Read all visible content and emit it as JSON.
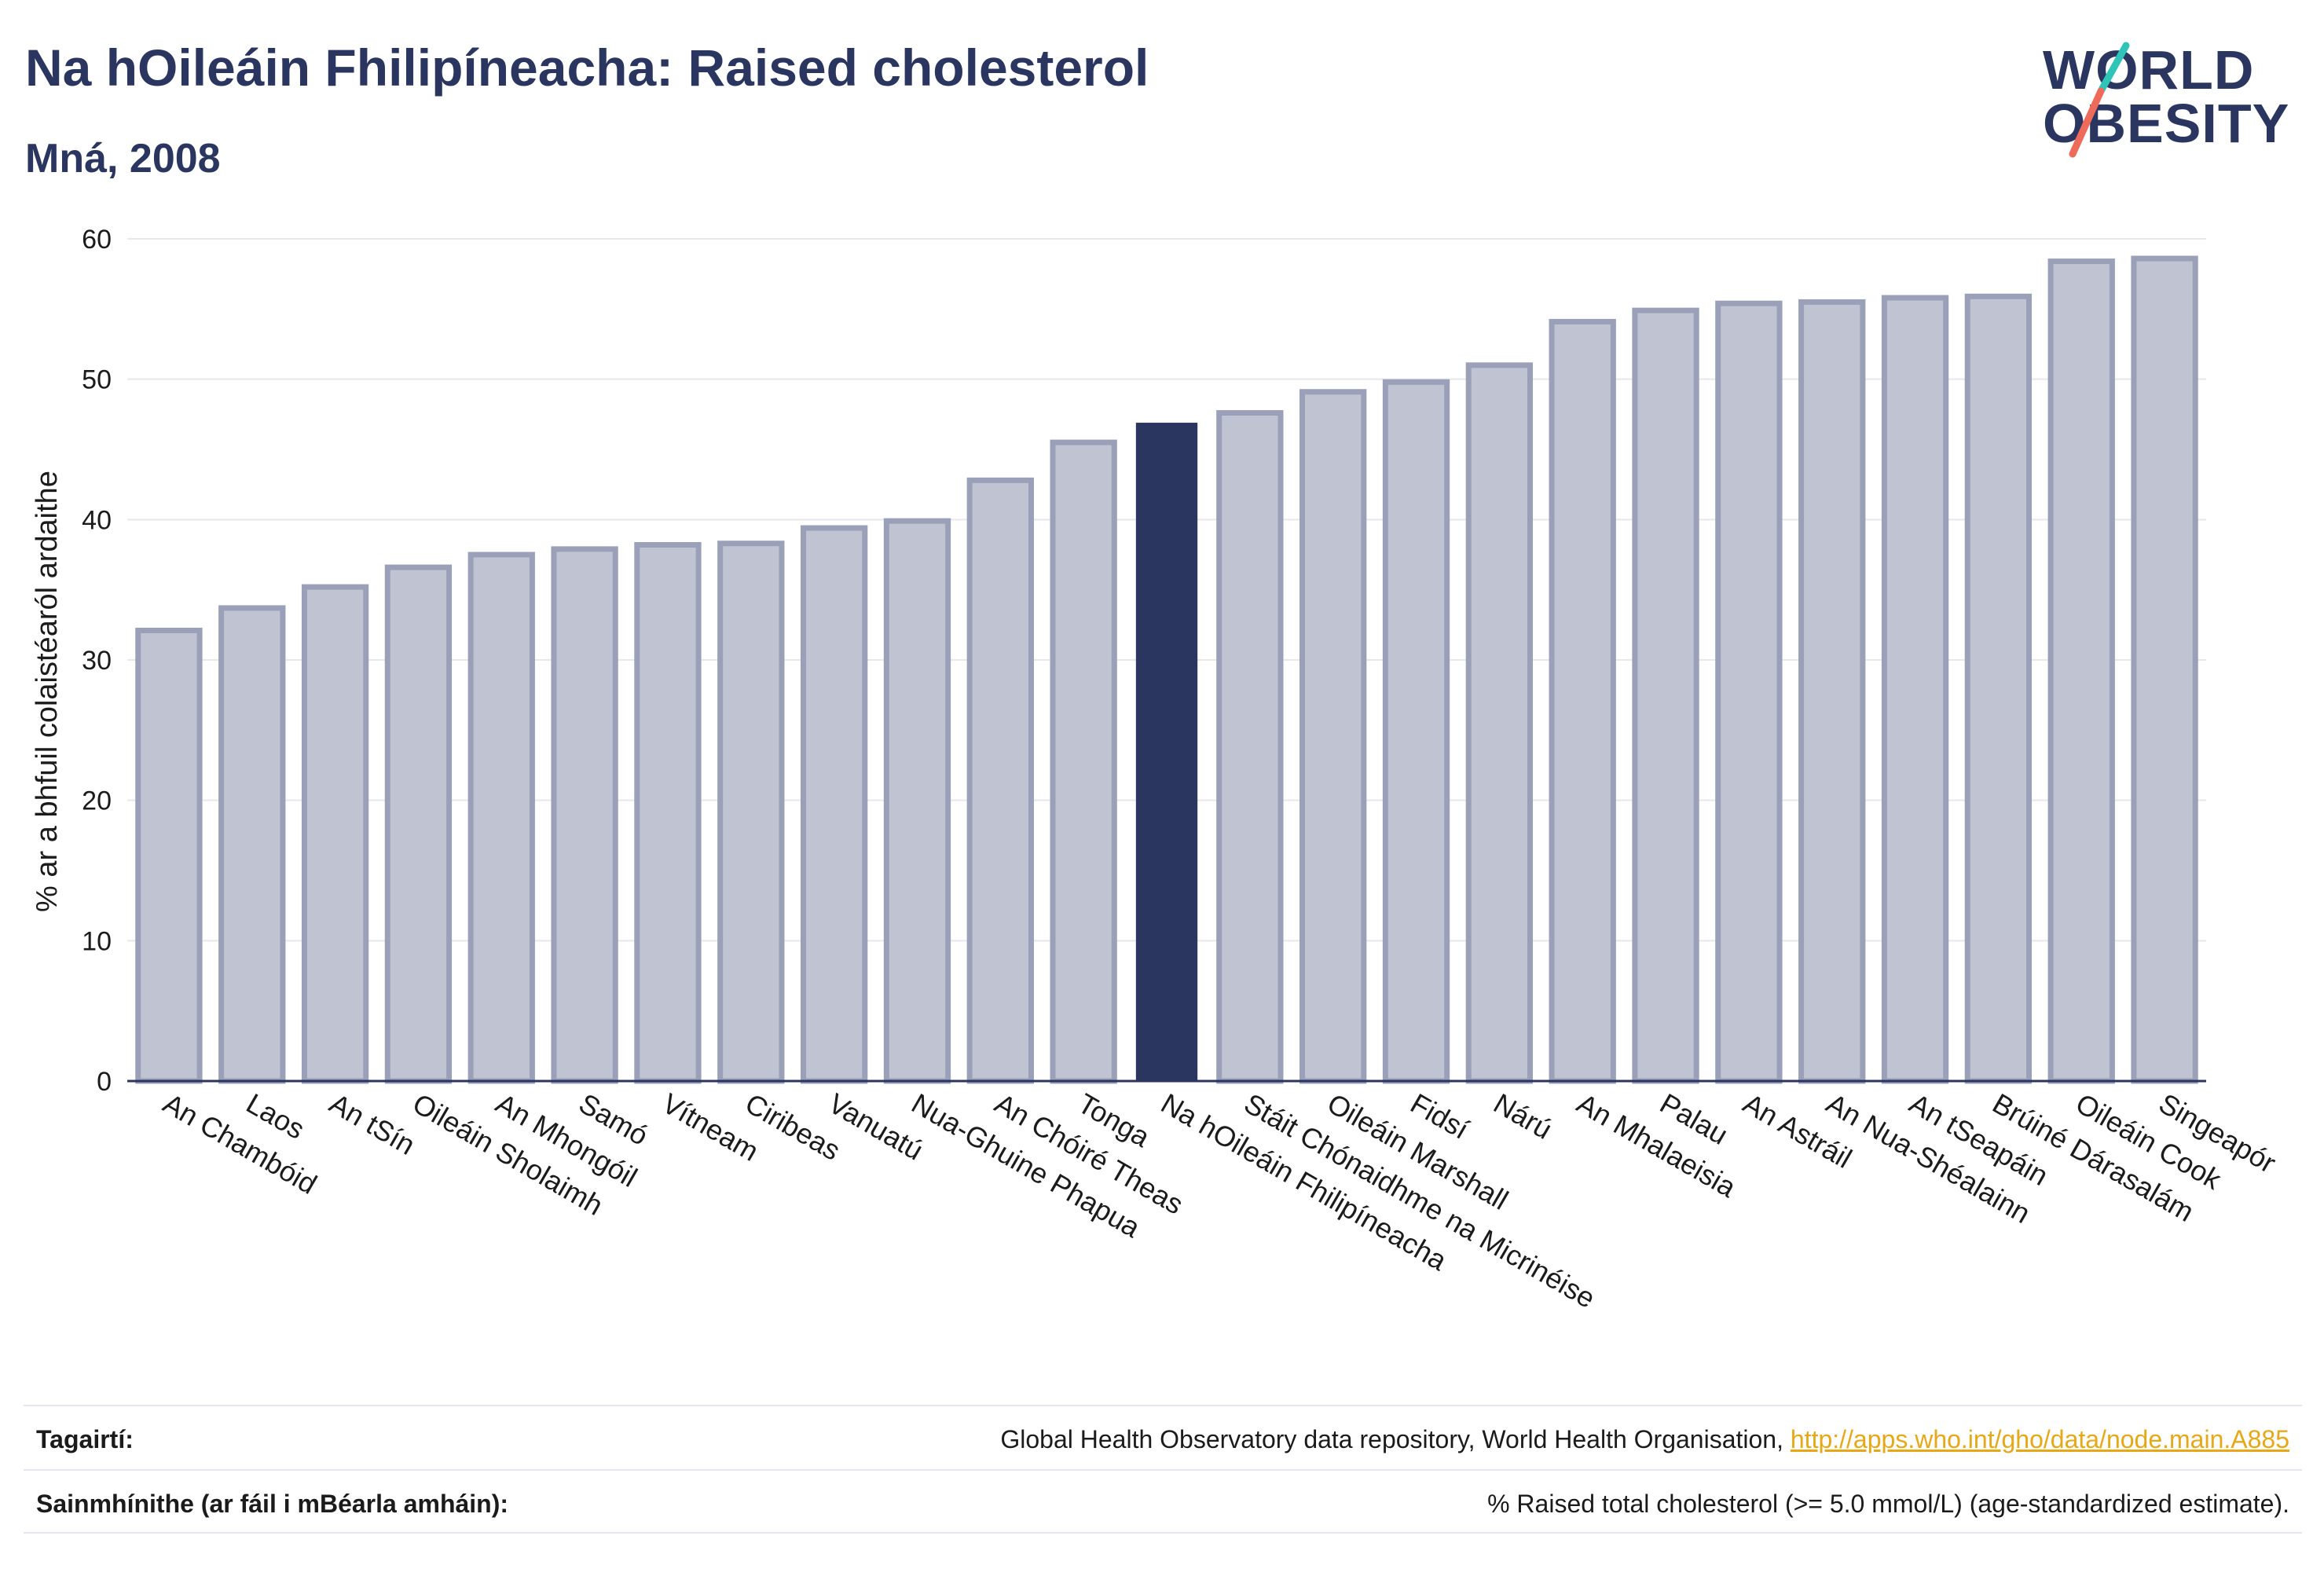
{
  "header": {
    "title": "Na hOileáin Fhilipíneacha: Raised cholesterol",
    "subtitle": "Mná, 2008"
  },
  "logo": {
    "line1": "WORLD",
    "line2": "OBESITY",
    "accent_teal": "#2fc4b8",
    "accent_coral": "#ee6a5b"
  },
  "colors": {
    "bar_default_fill": "#c0c3d1",
    "bar_default_stroke": "#9aa0b8",
    "bar_highlight": "#2b3660",
    "grid": "#e6e8ee",
    "axis_text": "#1b1b1b"
  },
  "chart_data": {
    "type": "bar",
    "ylabel": "% ar a bhfuil colaistéaról ardaithe",
    "xlabel": "",
    "ylim": [
      0,
      60
    ],
    "yticks": [
      0,
      10,
      20,
      30,
      40,
      50,
      60
    ],
    "grid": true,
    "highlight": "Na hOileáin Fhilipíneacha",
    "categories": [
      "An Chambóid",
      "Laos",
      "An tSín",
      "Oileáin Sholaimh",
      "An Mhongóil",
      "Samó",
      "Vítneam",
      "Ciribeas",
      "Vanuatú",
      "Nua-Ghuine Phapua",
      "An Chóiré Theas",
      "Tonga",
      "Na hOileáin Fhilipíneacha",
      "Stáit Chónaidhme na Micrinéise",
      "Oileáin Marshall",
      "Fidsí",
      "Nárú",
      "An Mhalaeisia",
      "Palau",
      "An Astráil",
      "An Nua-Shéalainn",
      "An tSeapáin",
      "Brúiné Dárasalám",
      "Oileáin Cook",
      "Singeapór"
    ],
    "values": [
      32.1,
      33.7,
      35.2,
      36.6,
      37.5,
      37.9,
      38.2,
      38.3,
      39.4,
      39.9,
      42.8,
      45.5,
      46.9,
      47.6,
      49.1,
      49.8,
      51.0,
      54.1,
      54.9,
      55.4,
      55.5,
      55.8,
      55.9,
      58.4,
      58.6
    ]
  },
  "footer": {
    "references_label": "Tagairtí:",
    "references_text": "Global Health Observatory data repository, World Health Organisation, ",
    "references_link": "http://apps.who.int/gho/data/node.main.A885",
    "definitions_label": "Sainmhínithe (ar fáil i mBéarla amháin):",
    "definitions_text": "% Raised total cholesterol (>= 5.0 mmol/L) (age-standardized estimate)."
  }
}
